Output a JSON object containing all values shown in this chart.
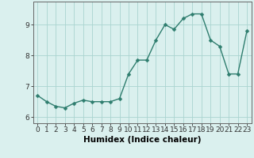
{
  "xlabel": "Humidex (Indice chaleur)",
  "x": [
    0,
    1,
    2,
    3,
    4,
    5,
    6,
    7,
    8,
    9,
    10,
    11,
    12,
    13,
    14,
    15,
    16,
    17,
    18,
    19,
    20,
    21,
    22,
    23
  ],
  "y": [
    6.7,
    6.5,
    6.35,
    6.3,
    6.45,
    6.55,
    6.5,
    6.5,
    6.5,
    6.6,
    7.4,
    7.85,
    7.85,
    8.5,
    9.0,
    8.85,
    9.2,
    9.35,
    9.35,
    8.5,
    8.3,
    7.4,
    7.4,
    8.8
  ],
  "line_color": "#2e7d6e",
  "marker": "D",
  "marker_size": 2.5,
  "bg_color": "#daf0ee",
  "grid_color": "#aad4d0",
  "ylim": [
    5.8,
    9.75
  ],
  "xlim": [
    -0.5,
    23.5
  ],
  "yticks": [
    6,
    7,
    8,
    9
  ],
  "xticks": [
    0,
    1,
    2,
    3,
    4,
    5,
    6,
    7,
    8,
    9,
    10,
    11,
    12,
    13,
    14,
    15,
    16,
    17,
    18,
    19,
    20,
    21,
    22,
    23
  ],
  "tick_fontsize": 6.5,
  "label_fontsize": 7.5,
  "linewidth": 1.0
}
